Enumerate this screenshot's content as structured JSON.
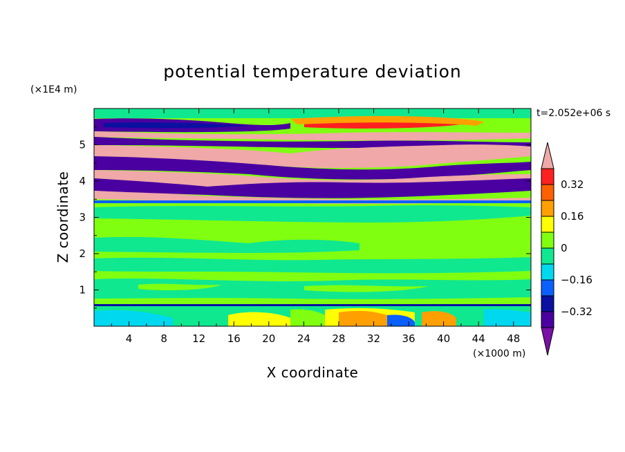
{
  "chart_data": {
    "type": "heatmap",
    "title": "potential temperature deviation",
    "xlabel": "X coordinate",
    "ylabel": "Z coordinate",
    "x_unit": "(×1000 m)",
    "y_unit": "(×1E4 m)",
    "time_label": "t=2.052e+06 s",
    "xlim": [
      0,
      50
    ],
    "ylim": [
      0,
      6
    ],
    "x_ticks": [
      "4",
      "8",
      "12",
      "16",
      "20",
      "24",
      "28",
      "32",
      "36",
      "40",
      "44",
      "48"
    ],
    "y_ticks": [
      "1",
      "2",
      "3",
      "4",
      "5"
    ],
    "colorbar": {
      "levels": [
        -0.4,
        -0.32,
        -0.24,
        -0.16,
        -0.08,
        0,
        0.08,
        0.16,
        0.24,
        0.32,
        0.4
      ],
      "tick_labels": [
        "0.32",
        "0.16",
        "0",
        "−0.16",
        "−0.32"
      ],
      "tick_values": [
        0.32,
        0.16,
        0,
        -0.16,
        -0.32
      ],
      "colors": {
        "below": "#7a10a8",
        "bins": [
          "#4a00a0",
          "#0a10a0",
          "#0a60ff",
          "#00d8f0",
          "#10e890",
          "#80ff10",
          "#ffff00",
          "#ffa000",
          "#ff6000",
          "#ff2020"
        ],
        "above": "#f0a8a8"
      }
    }
  }
}
